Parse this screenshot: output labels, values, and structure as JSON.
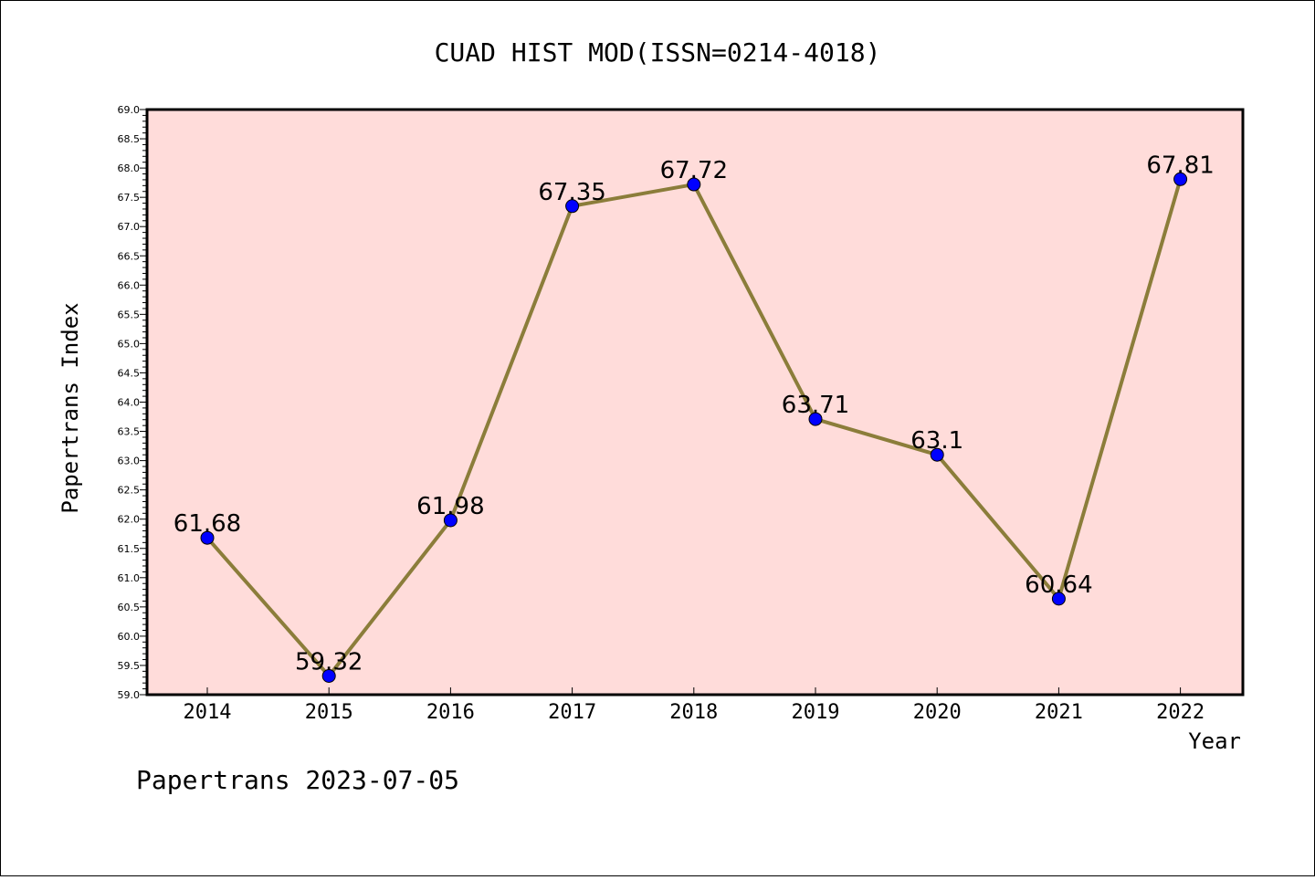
{
  "chart_data": {
    "type": "line",
    "title": "CUAD HIST MOD(ISSN=0214-4018)",
    "xlabel": "Year",
    "ylabel": "Papertrans Index",
    "categories": [
      "2014",
      "2015",
      "2016",
      "2017",
      "2018",
      "2019",
      "2020",
      "2021",
      "2022"
    ],
    "series": [
      {
        "values": [
          61.68,
          59.32,
          61.98,
          67.35,
          67.72,
          63.71,
          63.1,
          60.64,
          67.81
        ],
        "line_color": "#8B7D3A",
        "marker_color": "#0000FF"
      }
    ],
    "data_labels": [
      "61.68",
      "59.32",
      "61.98",
      "67.35",
      "67.72",
      "63.71",
      "63.1",
      "60.64",
      "67.81"
    ],
    "ylim": [
      59.0,
      69.0
    ],
    "yticks": [
      "59.0",
      "59.5",
      "60.0",
      "60.5",
      "61.0",
      "61.5",
      "62.0",
      "62.5",
      "63.0",
      "63.5",
      "64.0",
      "64.5",
      "65.0",
      "65.5",
      "66.0",
      "66.5",
      "67.0",
      "67.5",
      "68.0",
      "68.5",
      "69.0"
    ],
    "plot_background": "#FFDCDA",
    "grid": false,
    "legend": "none"
  },
  "footer": {
    "text": "Papertrans 2023-07-05"
  }
}
